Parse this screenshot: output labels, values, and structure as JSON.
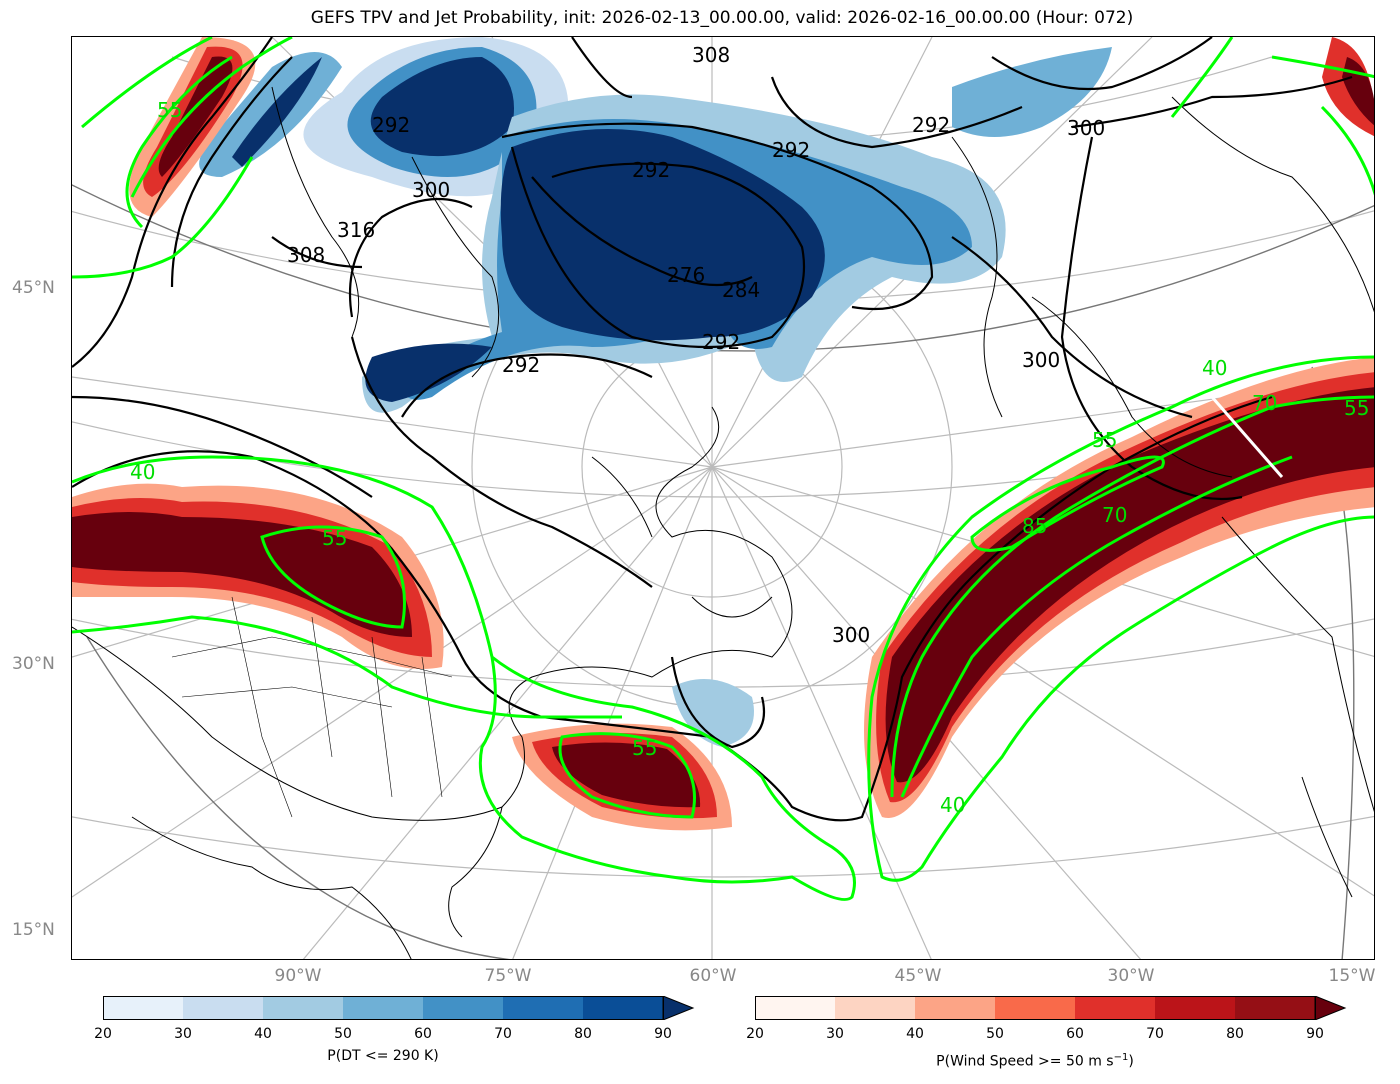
{
  "title": "GEFS TPV and Jet Probability, init: 2026-02-13_00.00.00, valid: 2026-02-16_00.00.00 (Hour: 072)",
  "axes": {
    "lat_labels": [
      "45°N",
      "30°N",
      "15°N"
    ],
    "lon_labels": [
      "90°W",
      "75°W",
      "60°W",
      "45°W",
      "30°W",
      "15°W"
    ]
  },
  "contours": {
    "theta_labels": [
      "308",
      "292",
      "300",
      "292",
      "316",
      "308",
      "292",
      "292",
      "300",
      "292",
      "300",
      "300",
      "276",
      "284",
      "292"
    ],
    "jet_labels": [
      "55",
      "40",
      "55",
      "55",
      "40",
      "70",
      "55",
      "85",
      "70",
      "40",
      "55"
    ]
  },
  "colorbars": {
    "tpv": {
      "ticks": [
        "20",
        "30",
        "40",
        "50",
        "60",
        "70",
        "80",
        "90"
      ],
      "label": "P(DT <= 290 K)",
      "colors": [
        "#e7f1fa",
        "#c9ddf0",
        "#a2cbe2",
        "#6fb0d6",
        "#4291c6",
        "#1f6eb3",
        "#0a4e97",
        "#08306b"
      ]
    },
    "jet": {
      "ticks": [
        "20",
        "30",
        "40",
        "50",
        "60",
        "70",
        "80",
        "90"
      ],
      "label_main": "P(Wind Speed >= 50 m s",
      "label_sup": "−1",
      "label_end": ")",
      "colors": [
        "#fff5f0",
        "#fdd4c2",
        "#fca486",
        "#f96a4a",
        "#e0302b",
        "#bb1419",
        "#950f15",
        "#67000d"
      ]
    }
  },
  "styles": {
    "jet_contour_color": "#00ff00",
    "theta_contour_color": "#000000",
    "graticule_color": "#bbbbbb"
  }
}
